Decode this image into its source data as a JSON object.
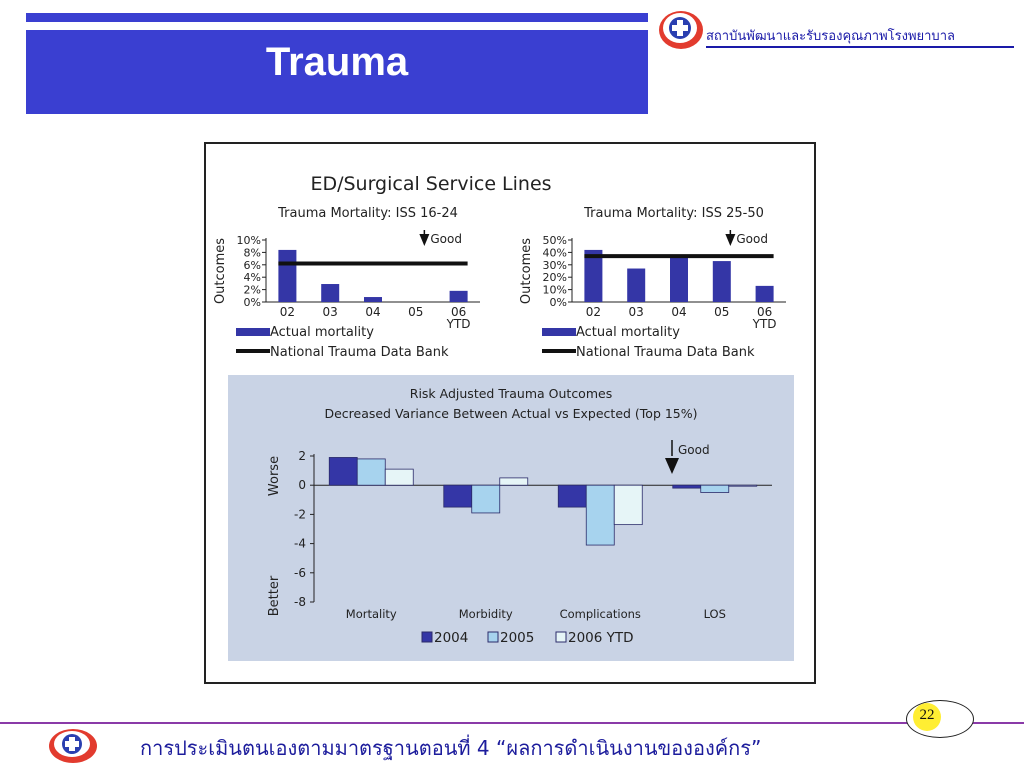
{
  "header": {
    "title": "Trauma",
    "org_name": "สถาบันพัฒนาและรับรองคุณภาพโรงพยาบาล"
  },
  "footer": {
    "text": "การประเมินตนเองตามมาตรฐานตอนที่ 4 “ผลการดำเนินงานขององค์กร”",
    "page_number": "22"
  },
  "colors": {
    "title_band": "#3a3fd1",
    "bar_2004": "#3436a6",
    "bar_2005": "#a7d3ee",
    "bar_2006": "#e6f5f7",
    "panel_bg": "#c9d3e5",
    "benchmark": "#111111"
  },
  "icons": [
    "red-cross-logo-icon",
    "good-arrow-icon"
  ],
  "chart_title": "ED/Surgical Service Lines",
  "chart_data": [
    {
      "type": "bar",
      "title": "Trauma Mortality: ISS 16-24",
      "ylabel": "Outcomes",
      "categories": [
        "02",
        "03",
        "04",
        "05",
        "06\nYTD"
      ],
      "category_labels": [
        "02",
        "03",
        "04",
        "05",
        "06"
      ],
      "category_sublabel": "YTD",
      "yticks": [
        "10%",
        "8%",
        "6%",
        "4%",
        "2%",
        "0%"
      ],
      "ylim": [
        0,
        10
      ],
      "series": [
        {
          "name": "Actual mortality",
          "values": [
            8.4,
            2.9,
            0.8,
            0.0,
            1.8
          ]
        },
        {
          "name": "National Trauma Data Bank",
          "values": [
            6.2,
            6.2,
            6.2,
            6.2,
            6.2
          ]
        }
      ],
      "annotation": "Good",
      "legend": "bottom"
    },
    {
      "type": "bar",
      "title": "Trauma Mortality: ISS 25-50",
      "ylabel": "Outcomes",
      "categories": [
        "02",
        "03",
        "04",
        "05",
        "06\nYTD"
      ],
      "category_labels": [
        "02",
        "03",
        "04",
        "05",
        "06"
      ],
      "category_sublabel": "YTD",
      "yticks": [
        "50%",
        "40%",
        "30%",
        "20%",
        "10%",
        "0%"
      ],
      "ylim": [
        0,
        50
      ],
      "series": [
        {
          "name": "Actual mortality",
          "values": [
            42,
            27,
            36,
            33,
            13
          ]
        },
        {
          "name": "National Trauma Data Bank",
          "values": [
            37,
            37,
            37,
            37,
            37
          ]
        }
      ],
      "annotation": "Good",
      "legend": "bottom"
    },
    {
      "type": "bar",
      "title": "Risk Adjusted Trauma Outcomes",
      "subtitle": "Decreased Variance Between Actual vs Expected (Top 15%)",
      "ylabel_top": "Worse",
      "ylabel_bottom": "Better",
      "categories": [
        "Mortality",
        "Morbidity",
        "Complications",
        "LOS"
      ],
      "yticks": [
        "2",
        "0",
        "-2",
        "-4",
        "-6",
        "-8"
      ],
      "ylim": [
        -8,
        2
      ],
      "series": [
        {
          "name": "2004",
          "values": [
            1.9,
            -1.5,
            -1.5,
            -0.2
          ]
        },
        {
          "name": "2005",
          "values": [
            1.8,
            -1.9,
            -4.1,
            -0.5
          ]
        },
        {
          "name": "2006 YTD",
          "values": [
            1.1,
            0.5,
            -2.7,
            0.0
          ]
        }
      ],
      "annotation": "Good",
      "legend": "bottom"
    }
  ]
}
